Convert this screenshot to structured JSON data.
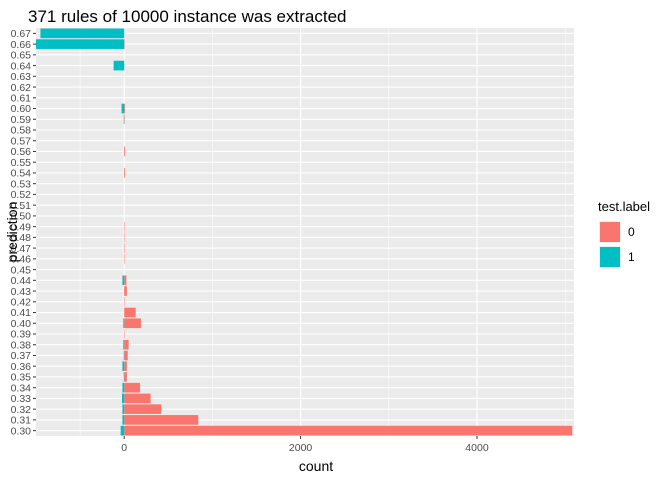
{
  "chart_data": {
    "type": "bar",
    "orientation": "horizontal",
    "title": "371 rules of 10000 instance was extracted",
    "xlabel": "count",
    "ylabel": "prediction",
    "xlim": [
      -1000,
      5100
    ],
    "x_ticks": [
      0,
      2000,
      4000
    ],
    "categories": [
      "0.30",
      "0.31",
      "0.32",
      "0.33",
      "0.34",
      "0.35",
      "0.36",
      "0.37",
      "0.38",
      "0.39",
      "0.40",
      "0.41",
      "0.42",
      "0.43",
      "0.44",
      "0.45",
      "0.46",
      "0.47",
      "0.48",
      "0.49",
      "0.50",
      "0.51",
      "0.52",
      "0.53",
      "0.54",
      "0.55",
      "0.56",
      "0.57",
      "0.58",
      "0.59",
      "0.60",
      "0.61",
      "0.62",
      "0.63",
      "0.64",
      "0.65",
      "0.66",
      "0.67"
    ],
    "series": [
      {
        "name": "0",
        "color": "#F8766D",
        "values": [
          5080,
          840,
          420,
          300,
          180,
          30,
          30,
          40,
          50,
          5,
          190,
          130,
          5,
          30,
          25,
          0,
          5,
          5,
          5,
          5,
          0,
          0,
          0,
          0,
          10,
          0,
          10,
          0,
          0,
          5,
          10,
          0,
          0,
          0,
          0,
          0,
          5,
          0
        ]
      },
      {
        "name": "1",
        "color": "#00BFC4",
        "values": [
          -40,
          -20,
          -20,
          -25,
          -20,
          -5,
          -20,
          -5,
          -10,
          0,
          -10,
          0,
          0,
          0,
          -20,
          0,
          0,
          0,
          0,
          0,
          0,
          0,
          0,
          0,
          0,
          0,
          0,
          0,
          0,
          -5,
          -30,
          0,
          0,
          0,
          -120,
          0,
          -1000,
          -950
        ]
      }
    ],
    "legend": {
      "title": "test.label",
      "position": "right"
    },
    "grid": true
  }
}
